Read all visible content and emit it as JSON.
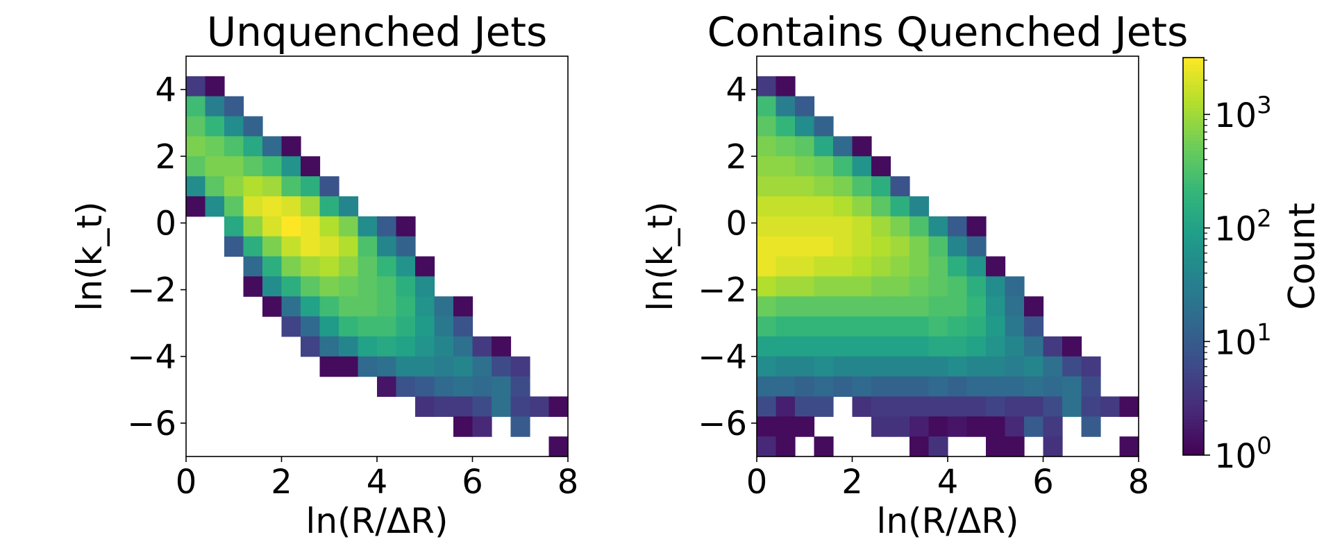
{
  "chart_data": [
    {
      "type": "heatmap",
      "title": "Unquenched Jets",
      "xlabel": "ln(R/ΔR)",
      "ylabel": "ln(k_t)",
      "xlim": [
        0,
        8
      ],
      "ylim": [
        -7,
        5
      ],
      "xticks": [
        0,
        2,
        4,
        6,
        8
      ],
      "yticks": [
        4,
        2,
        0,
        -2,
        -4,
        -6
      ],
      "bin_width": 0.4,
      "bin_height": 0.6,
      "x_start": 0,
      "y_top": 4.4,
      "scale": "log",
      "rows": [
        [
          0.6,
          0.1,
          null,
          null,
          null,
          null,
          null,
          null,
          null,
          null,
          null,
          null,
          null,
          null,
          null,
          null,
          null,
          null,
          null,
          null
        ],
        [
          2.4,
          1.5,
          1.0,
          null,
          null,
          null,
          null,
          null,
          null,
          null,
          null,
          null,
          null,
          null,
          null,
          null,
          null,
          null,
          null,
          null
        ],
        [
          2.6,
          2.3,
          1.7,
          1.1,
          null,
          null,
          null,
          null,
          null,
          null,
          null,
          null,
          null,
          null,
          null,
          null,
          null,
          null,
          null,
          null
        ],
        [
          2.8,
          2.7,
          2.5,
          2.1,
          1.2,
          0.1,
          null,
          null,
          null,
          null,
          null,
          null,
          null,
          null,
          null,
          null,
          null,
          null,
          null,
          null
        ],
        [
          2.6,
          2.8,
          2.8,
          2.6,
          2.4,
          1.8,
          0.1,
          null,
          null,
          null,
          null,
          null,
          null,
          null,
          null,
          null,
          null,
          null,
          null,
          null
        ],
        [
          1.7,
          2.6,
          2.9,
          3.1,
          3.0,
          2.5,
          2.2,
          0.9,
          null,
          null,
          null,
          null,
          null,
          null,
          null,
          null,
          null,
          null,
          null,
          null
        ],
        [
          0.1,
          1.7,
          2.6,
          3.3,
          3.4,
          3.3,
          3.0,
          2.2,
          1.6,
          null,
          null,
          null,
          null,
          null,
          null,
          null,
          null,
          null,
          null,
          null
        ],
        [
          null,
          null,
          2.1,
          2.9,
          3.3,
          3.5,
          3.4,
          3.1,
          2.8,
          1.7,
          1.0,
          0.1,
          null,
          null,
          null,
          null,
          null,
          null,
          null,
          null
        ],
        [
          null,
          null,
          1.0,
          2.2,
          2.8,
          3.2,
          3.4,
          3.3,
          3.1,
          2.5,
          1.6,
          1.1,
          null,
          null,
          null,
          null,
          null,
          null,
          null,
          null
        ],
        [
          null,
          null,
          null,
          1.2,
          2.2,
          2.8,
          3.0,
          3.1,
          2.9,
          2.6,
          2.3,
          1.8,
          0.1,
          null,
          null,
          null,
          null,
          null,
          null,
          null
        ],
        [
          null,
          null,
          null,
          0.1,
          1.7,
          2.2,
          2.6,
          2.8,
          2.7,
          2.6,
          2.5,
          2.2,
          1.7,
          null,
          null,
          null,
          null,
          null,
          null,
          null
        ],
        [
          null,
          null,
          null,
          null,
          0.1,
          1.3,
          2.0,
          2.4,
          2.6,
          2.6,
          2.5,
          2.3,
          1.8,
          1.3,
          0.1,
          null,
          null,
          null,
          null,
          null
        ],
        [
          null,
          null,
          null,
          null,
          null,
          0.7,
          1.2,
          1.9,
          2.3,
          2.4,
          2.4,
          2.2,
          1.9,
          1.4,
          0.9,
          null,
          null,
          null,
          null,
          null
        ],
        [
          null,
          null,
          null,
          null,
          null,
          null,
          0.7,
          1.3,
          1.6,
          2.0,
          2.1,
          2.0,
          1.8,
          1.6,
          1.3,
          0.6,
          0.1,
          null,
          null,
          null
        ],
        [
          null,
          null,
          null,
          null,
          null,
          null,
          null,
          0.1,
          0.1,
          1.2,
          1.3,
          1.6,
          1.6,
          1.5,
          1.6,
          1.3,
          0.8,
          0.6,
          null,
          null
        ],
        [
          null,
          null,
          null,
          null,
          null,
          null,
          null,
          null,
          null,
          null,
          0.2,
          0.9,
          1.0,
          1.2,
          1.3,
          1.2,
          1.3,
          0.8,
          null,
          null
        ],
        [
          null,
          null,
          null,
          null,
          null,
          null,
          null,
          null,
          null,
          null,
          null,
          null,
          0.5,
          0.6,
          0.6,
          0.8,
          1.3,
          0.7,
          0.6,
          0.1
        ],
        [
          null,
          null,
          null,
          null,
          null,
          null,
          null,
          null,
          null,
          null,
          null,
          null,
          null,
          null,
          0.1,
          0.4,
          null,
          1.0,
          null,
          null
        ],
        [
          null,
          null,
          null,
          null,
          null,
          null,
          null,
          null,
          null,
          null,
          null,
          null,
          null,
          null,
          null,
          null,
          null,
          null,
          null,
          0.1
        ]
      ]
    },
    {
      "type": "heatmap",
      "title": "Contains Quenched Jets",
      "xlabel": "ln(R/ΔR)",
      "ylabel": "ln(k_t)",
      "xlim": [
        0,
        8
      ],
      "ylim": [
        -7,
        5
      ],
      "xticks": [
        0,
        2,
        4,
        6,
        8
      ],
      "yticks": [
        4,
        2,
        0,
        -2,
        -4,
        -6
      ],
      "bin_width": 0.4,
      "bin_height": 0.6,
      "x_start": 0,
      "y_top": 4.4,
      "scale": "log",
      "rows": [
        [
          0.6,
          0.1,
          null,
          null,
          null,
          null,
          null,
          null,
          null,
          null,
          null,
          null,
          null,
          null,
          null,
          null,
          null,
          null,
          null,
          null
        ],
        [
          2.4,
          1.5,
          1.0,
          null,
          null,
          null,
          null,
          null,
          null,
          null,
          null,
          null,
          null,
          null,
          null,
          null,
          null,
          null,
          null,
          null
        ],
        [
          2.6,
          2.3,
          1.7,
          1.1,
          null,
          null,
          null,
          null,
          null,
          null,
          null,
          null,
          null,
          null,
          null,
          null,
          null,
          null,
          null,
          null
        ],
        [
          2.8,
          2.7,
          2.6,
          2.1,
          1.2,
          0.1,
          null,
          null,
          null,
          null,
          null,
          null,
          null,
          null,
          null,
          null,
          null,
          null,
          null,
          null
        ],
        [
          2.9,
          2.9,
          2.8,
          2.7,
          2.4,
          1.8,
          0.1,
          null,
          null,
          null,
          null,
          null,
          null,
          null,
          null,
          null,
          null,
          null,
          null,
          null
        ],
        [
          3.0,
          3.0,
          3.0,
          2.9,
          2.8,
          2.5,
          2.2,
          0.9,
          null,
          null,
          null,
          null,
          null,
          null,
          null,
          null,
          null,
          null,
          null,
          null
        ],
        [
          3.2,
          3.2,
          3.2,
          3.2,
          3.1,
          2.9,
          2.6,
          2.2,
          1.6,
          null,
          null,
          null,
          null,
          null,
          null,
          null,
          null,
          null,
          null,
          null
        ],
        [
          3.3,
          3.3,
          3.3,
          3.3,
          3.3,
          3.2,
          3.0,
          2.8,
          2.5,
          1.7,
          1.0,
          0.1,
          null,
          null,
          null,
          null,
          null,
          null,
          null,
          null
        ],
        [
          3.4,
          3.4,
          3.4,
          3.4,
          3.3,
          3.2,
          3.1,
          3.0,
          2.8,
          2.5,
          1.6,
          1.1,
          null,
          null,
          null,
          null,
          null,
          null,
          null,
          null
        ],
        [
          3.4,
          3.3,
          3.3,
          3.2,
          3.2,
          3.1,
          3.0,
          2.9,
          2.8,
          2.6,
          2.2,
          1.8,
          0.1,
          null,
          null,
          null,
          null,
          null,
          null,
          null
        ],
        [
          3.1,
          3.0,
          3.0,
          2.9,
          2.9,
          2.9,
          2.8,
          2.8,
          2.7,
          2.6,
          2.5,
          2.2,
          1.7,
          1.2,
          null,
          null,
          null,
          null,
          null,
          null
        ],
        [
          2.7,
          2.6,
          2.6,
          2.6,
          2.6,
          2.6,
          2.6,
          2.6,
          2.6,
          2.5,
          2.5,
          2.3,
          1.8,
          1.3,
          0.1,
          null,
          null,
          null,
          null,
          null
        ],
        [
          2.4,
          2.3,
          2.3,
          2.3,
          2.3,
          2.3,
          2.3,
          2.3,
          2.3,
          2.4,
          2.3,
          2.2,
          1.9,
          1.4,
          0.9,
          null,
          null,
          null,
          null,
          null
        ],
        [
          2.0,
          2.0,
          2.0,
          2.0,
          2.0,
          2.0,
          2.0,
          2.0,
          2.0,
          2.1,
          2.1,
          2.0,
          1.8,
          1.6,
          1.3,
          0.6,
          0.1,
          null,
          null,
          null
        ],
        [
          1.7,
          1.6,
          1.6,
          1.7,
          1.6,
          1.6,
          1.6,
          1.6,
          1.6,
          1.6,
          1.7,
          1.6,
          1.6,
          1.5,
          1.6,
          1.3,
          0.8,
          0.6,
          null,
          null
        ],
        [
          1.2,
          1.2,
          1.1,
          1.2,
          1.1,
          1.2,
          1.1,
          1.1,
          1.1,
          1.2,
          1.1,
          1.2,
          1.2,
          1.2,
          1.3,
          1.2,
          1.3,
          0.8,
          null,
          null
        ],
        [
          0.8,
          0.3,
          0.8,
          0.8,
          null,
          0.5,
          0.6,
          0.6,
          0.6,
          0.6,
          0.6,
          0.6,
          0.7,
          0.6,
          0.6,
          0.8,
          1.3,
          0.7,
          0.6,
          0.1
        ],
        [
          0.1,
          0.1,
          0.1,
          null,
          null,
          null,
          0.5,
          0.5,
          0.3,
          0.1,
          0.2,
          0.1,
          0.1,
          0.4,
          1.0,
          0.6,
          null,
          1.0,
          null,
          null
        ],
        [
          0.4,
          0.1,
          null,
          0.1,
          null,
          null,
          null,
          null,
          0.1,
          0.5,
          null,
          null,
          0.1,
          0.1,
          null,
          0.5,
          null,
          null,
          null,
          0.1
        ]
      ]
    }
  ],
  "colorbar": {
    "label": "Count",
    "scale": "log",
    "range": [
      0,
      3.5
    ],
    "ticks": [
      {
        "value": 0,
        "label": "10",
        "exp": "0"
      },
      {
        "value": 1,
        "label": "10",
        "exp": "1"
      },
      {
        "value": 2,
        "label": "10",
        "exp": "2"
      },
      {
        "value": 3,
        "label": "10",
        "exp": "3"
      }
    ]
  }
}
